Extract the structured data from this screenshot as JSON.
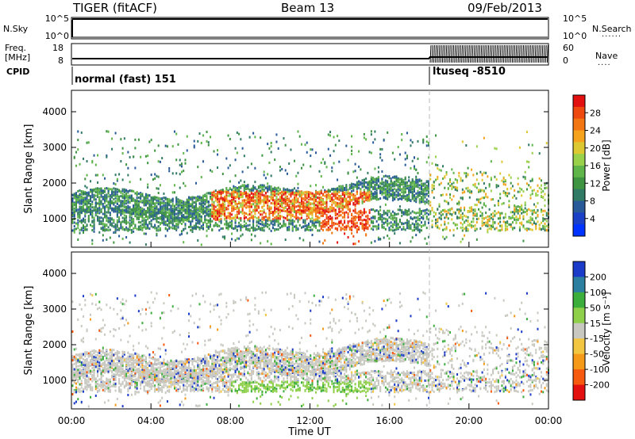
{
  "header": {
    "radar": "TIGER (fitACF)",
    "beam": "Beam 13",
    "date": "09/Feb/2013"
  },
  "panels": {
    "nsky": {
      "label": "N.Sky",
      "ticks": [
        "10^5",
        "10^0"
      ]
    },
    "nsearch": {
      "label": "N.Search",
      "dots": "......",
      "ticks": [
        "10^5",
        "10^0"
      ]
    },
    "freq": {
      "label_line1": "Freq.",
      "label_line2": "[MHz]",
      "ticks": [
        "18",
        "8"
      ]
    },
    "nave": {
      "label": "Nave",
      "dots": "....",
      "ticks": [
        "60",
        "0"
      ]
    },
    "cpid": {
      "label": "CPID",
      "mode1": "normal (fast) 151",
      "mode2": "ltuseq -8510"
    }
  },
  "colorbars": {
    "power": {
      "label": "Power [dB]",
      "ticks": [
        "28",
        "24",
        "20",
        "16",
        "12",
        "8",
        "4"
      ],
      "colors": [
        "#0033ff",
        "#1a40c8",
        "#285a99",
        "#307a66",
        "#3e9440",
        "#5fb54a",
        "#9ad14a",
        "#dcc830",
        "#f5a31c",
        "#f27612",
        "#ee4a10",
        "#e31010"
      ]
    },
    "velocity": {
      "label": "Velocity [m s⁻¹]",
      "ticks": [
        "200",
        "100",
        "50",
        "15",
        "-15",
        "-50",
        "-100",
        "-200"
      ],
      "colors": [
        "#e31010",
        "#f55a0e",
        "#f59a18",
        "#f2c640",
        "#c8c8c0",
        "#8fd04a",
        "#3cae3c",
        "#2c7fa0",
        "#1a3cc8"
      ]
    }
  },
  "x_ticks": [
    "00:00",
    "04:00",
    "08:00",
    "12:00",
    "16:00",
    "20:00",
    "00:00"
  ],
  "x_title": "Time UT",
  "chart_data": [
    {
      "type": "heatmap",
      "panel": "power",
      "ylabel": "Slant Range [km]",
      "yticks": [
        "4000",
        "3000",
        "2000",
        "1000"
      ],
      "xlim": [
        "00:00",
        "24:00"
      ],
      "ylim": [
        200,
        4600
      ],
      "colorbar": "Power [dB]",
      "clim": [
        0,
        32
      ]
    },
    {
      "type": "heatmap",
      "panel": "velocity",
      "ylabel": "Slant Range [km]",
      "yticks": [
        "4000",
        "3000",
        "2000",
        "1000"
      ],
      "xlim": [
        "00:00",
        "24:00"
      ],
      "ylim": [
        200,
        4600
      ],
      "colorbar": "Velocity [m s⁻¹]",
      "clim": [
        -200,
        200
      ]
    }
  ]
}
